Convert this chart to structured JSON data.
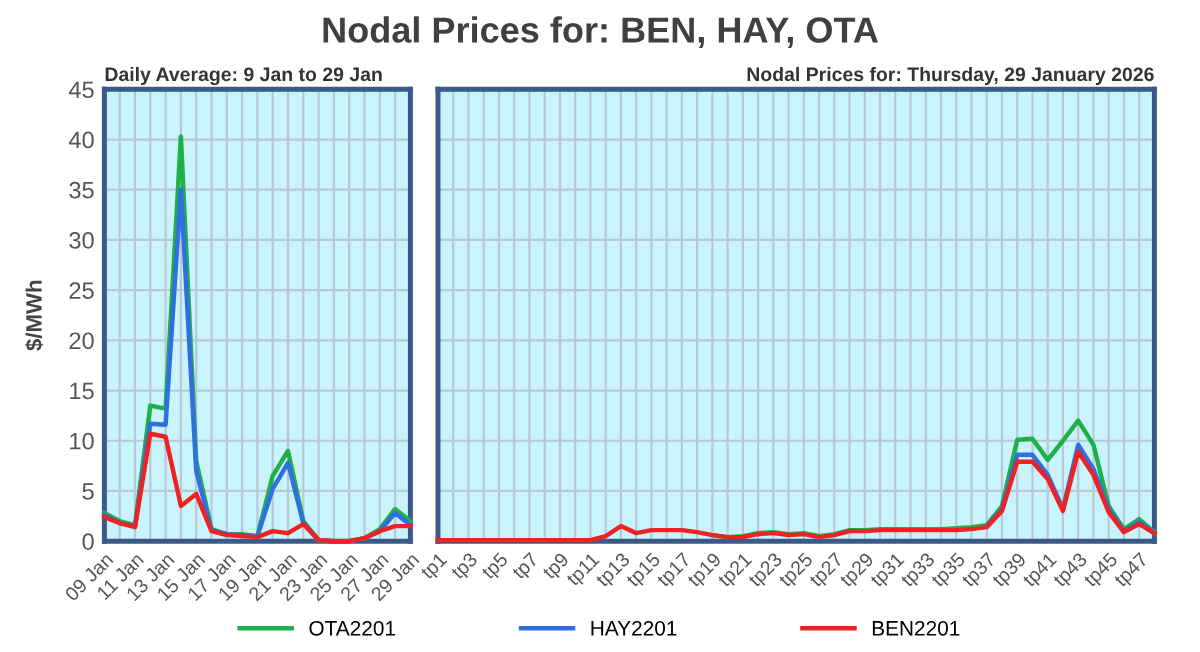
{
  "chart_data": [
    {
      "type": "line",
      "title": "Nodal Prices for: BEN, HAY, OTA",
      "subtitle": "Daily Average: 9 Jan to 29 Jan",
      "ylabel": "$/MWh",
      "categories": [
        "09 Jan",
        null,
        "11 Jan",
        null,
        "13 Jan",
        null,
        "15 Jan",
        null,
        "17 Jan",
        null,
        "19 Jan",
        null,
        "21 Jan",
        null,
        "23 Jan",
        null,
        "25 Jan",
        null,
        "27 Jan",
        null,
        "29 Jan"
      ],
      "series": [
        {
          "name": "OTA2201",
          "color": "#1fb04a",
          "values": [
            2.8,
            2.0,
            1.6,
            13.5,
            13.2,
            40.3,
            8.0,
            1.2,
            0.7,
            0.7,
            0.5,
            6.5,
            9.0,
            2.0,
            0.1,
            0,
            0,
            0.3,
            1.2,
            3.2,
            2.0
          ]
        },
        {
          "name": "HAY2201",
          "color": "#2f6fe0",
          "values": [
            2.6,
            1.8,
            1.5,
            11.7,
            11.6,
            35.0,
            7.0,
            1.1,
            0.7,
            0.6,
            0.5,
            5.2,
            7.8,
            1.8,
            0.1,
            0,
            0,
            0.3,
            1.0,
            2.8,
            1.6
          ]
        },
        {
          "name": "BEN2201",
          "color": "#ee2222",
          "values": [
            2.4,
            1.8,
            1.4,
            10.7,
            10.4,
            3.5,
            4.7,
            1.0,
            0.6,
            0.5,
            0.4,
            1.0,
            0.8,
            1.7,
            0.1,
            0,
            0,
            0.3,
            1.0,
            1.5,
            1.5
          ]
        }
      ],
      "ylim": [
        0,
        45
      ],
      "yticks": [
        0,
        5,
        10,
        15,
        20,
        25,
        30,
        35,
        40,
        45
      ],
      "grid": true,
      "legend": "bottom"
    },
    {
      "type": "line",
      "subtitle": "Nodal Prices for: Thursday, 29 January 2026",
      "categories": [
        "tp1",
        null,
        "tp3",
        null,
        "tp5",
        null,
        "tp7",
        null,
        "tp9",
        null,
        "tp11",
        null,
        "tp13",
        null,
        "tp15",
        null,
        "tp17",
        null,
        "tp19",
        null,
        "tp21",
        null,
        "tp23",
        null,
        "tp25",
        null,
        "tp27",
        null,
        "tp29",
        null,
        "tp31",
        null,
        "tp33",
        null,
        "tp35",
        null,
        "tp37",
        null,
        "tp39",
        null,
        "tp41",
        null,
        "tp43",
        null,
        "tp45",
        null,
        "tp47",
        null
      ],
      "series": [
        {
          "color": "#1fb04a",
          "values": [
            null,
            null,
            null,
            null,
            null,
            null,
            null,
            null,
            null,
            null,
            null,
            null,
            null,
            null,
            null,
            null,
            null,
            null,
            0.6,
            0.4,
            0.5,
            0.8,
            0.9,
            0.7,
            0.8,
            0.5,
            0.7,
            1.1,
            1.1,
            1.2,
            1.2,
            1.2,
            1.2,
            1.2,
            1.3,
            1.4,
            1.6,
            3.5,
            10.1,
            10.2,
            8.1,
            10.0,
            12.0,
            9.6,
            3.5,
            1.2,
            2.2,
            0.9
          ]
        },
        {
          "color": "#2f6fe0",
          "values": [
            null,
            null,
            null,
            null,
            null,
            null,
            null,
            null,
            null,
            null,
            null,
            null,
            null,
            null,
            null,
            null,
            null,
            null,
            null,
            null,
            null,
            null,
            null,
            null,
            null,
            null,
            null,
            null,
            null,
            null,
            null,
            null,
            null,
            null,
            null,
            null,
            1.5,
            3.2,
            8.6,
            8.6,
            6.6,
            3.2,
            9.6,
            7.2,
            3.2,
            1.0,
            1.9,
            0.8
          ]
        },
        {
          "color": "#ee2222",
          "values": [
            0.1,
            0.1,
            0.1,
            0.1,
            0.1,
            0.1,
            0.1,
            0.1,
            0.1,
            0.1,
            0.1,
            0.5,
            1.5,
            0.8,
            1.1,
            1.1,
            1.1,
            0.9,
            0.6,
            0.4,
            0.4,
            0.7,
            0.8,
            0.6,
            0.7,
            0.4,
            0.6,
            1.0,
            1.0,
            1.1,
            1.1,
            1.1,
            1.1,
            1.1,
            1.1,
            1.2,
            1.4,
            3.0,
            7.9,
            7.9,
            6.2,
            3.0,
            8.9,
            6.6,
            2.9,
            0.9,
            1.7,
            0.8
          ]
        }
      ],
      "ylim": [
        0,
        45
      ],
      "yticks": [
        0,
        5,
        10,
        15,
        20,
        25,
        30,
        35,
        40,
        45
      ],
      "grid": true,
      "tick_labels": "x"
    }
  ]
}
